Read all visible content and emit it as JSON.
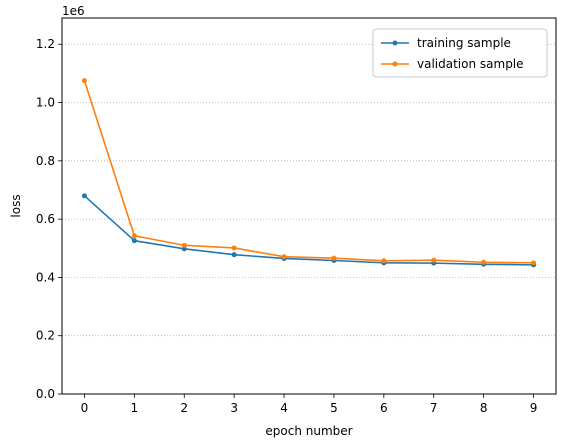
{
  "chart_data": {
    "type": "line",
    "x": [
      0,
      1,
      2,
      3,
      4,
      5,
      6,
      7,
      8,
      9
    ],
    "series": [
      {
        "name": "training sample",
        "color": "#1f77b4",
        "marker": "circle",
        "values": [
          680000,
          526000,
          498000,
          478000,
          465000,
          458000,
          450000,
          449000,
          445000,
          443000
        ]
      },
      {
        "name": "validation sample",
        "color": "#ff7f0e",
        "marker": "circle",
        "values": [
          1075000,
          543000,
          510000,
          501000,
          471000,
          466000,
          457000,
          459000,
          452000,
          450000
        ]
      }
    ],
    "xlabel": "epoch number",
    "ylabel": "loss",
    "y_offset_label": "1e6",
    "xlim": [
      -0.45,
      9.45
    ],
    "ylim": [
      0,
      1290000
    ],
    "xticks": [
      0,
      1,
      2,
      3,
      4,
      5,
      6,
      7,
      8,
      9
    ],
    "xtick_labels": [
      "0",
      "1",
      "2",
      "3",
      "4",
      "5",
      "6",
      "7",
      "8",
      "9"
    ],
    "yticks": [
      0,
      200000,
      400000,
      600000,
      800000,
      1000000,
      1200000
    ],
    "ytick_labels": [
      "0.0",
      "0.2",
      "0.4",
      "0.6",
      "0.8",
      "1.0",
      "1.2"
    ],
    "grid": "y-dotted",
    "grid_color": "#b0b0b0",
    "legend_position": "top-right"
  }
}
